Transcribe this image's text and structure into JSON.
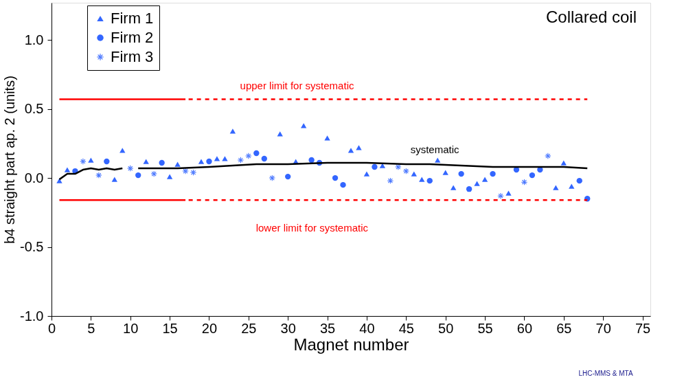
{
  "chart_data": {
    "type": "scatter",
    "title": "Collared coil",
    "xlabel": "Magnet number",
    "ylabel": "b4 straight part ap. 2 (units)",
    "xlim": [
      0,
      76
    ],
    "xticks": [
      0,
      5,
      10,
      15,
      20,
      25,
      30,
      35,
      40,
      45,
      50,
      55,
      60,
      65,
      70,
      75
    ],
    "ylim": [
      -1.0,
      1.27
    ],
    "yticks": [
      {
        "value": -1.0,
        "label": "-1.0"
      },
      {
        "value": -0.5,
        "label": "-0.5"
      },
      {
        "value": 0,
        "label": "0.0"
      },
      {
        "value": 0.5,
        "label": "0.5"
      },
      {
        "value": 1.0,
        "label": "1.0"
      }
    ],
    "grid": false,
    "legend": "top left",
    "series": [
      {
        "name": "Firm 1",
        "marker": "triangle",
        "color": "#3366ff",
        "x": [
          1,
          2,
          5,
          8,
          9,
          12,
          15,
          16,
          19,
          21,
          22,
          23,
          29,
          31,
          32,
          35,
          38,
          39,
          40,
          42,
          46,
          47,
          49,
          50,
          51,
          54,
          55,
          58,
          64,
          65,
          66
        ],
        "values": [
          -0.02,
          0.06,
          0.13,
          -0.01,
          0.2,
          0.12,
          0.01,
          0.1,
          0.12,
          0.14,
          0.14,
          0.34,
          0.32,
          0.12,
          0.38,
          0.29,
          0.2,
          0.22,
          0.03,
          0.09,
          0.03,
          -0.01,
          0.13,
          0.04,
          -0.07,
          -0.04,
          -0.01,
          -0.11,
          -0.07,
          0.11,
          -0.06
        ]
      },
      {
        "name": "Firm 2",
        "marker": "circle",
        "color": "#3366ff",
        "x": [
          3,
          7,
          11,
          14,
          20,
          26,
          27,
          30,
          33,
          34,
          36,
          37,
          41,
          48,
          52,
          53,
          56,
          59,
          61,
          62,
          67,
          68
        ],
        "values": [
          0.05,
          0.12,
          0.02,
          0.11,
          0.12,
          0.18,
          0.14,
          0.01,
          0.13,
          0.11,
          0.0,
          -0.05,
          0.08,
          -0.02,
          0.03,
          -0.08,
          0.03,
          0.06,
          0.02,
          0.06,
          -0.02,
          -0.15
        ]
      },
      {
        "name": "Firm 3",
        "marker": "cross",
        "color": "#3366ff",
        "x": [
          4,
          6,
          10,
          13,
          17,
          18,
          24,
          25,
          28,
          43,
          44,
          45,
          57,
          60,
          63
        ],
        "values": [
          0.12,
          0.02,
          0.07,
          0.03,
          0.05,
          0.04,
          0.13,
          0.16,
          0.0,
          -0.02,
          0.08,
          0.05,
          -0.13,
          -0.03,
          0.16
        ]
      },
      {
        "type": "line",
        "color": "#000000",
        "line_style": "solid",
        "x": [
          1,
          2,
          3,
          4,
          5,
          6,
          7,
          8,
          9,
          10,
          11,
          16,
          20,
          23,
          26,
          30,
          35,
          40,
          45,
          48,
          52,
          56,
          60,
          65,
          68
        ],
        "values": [
          -0.01,
          0.03,
          0.03,
          0.06,
          0.07,
          0.06,
          0.07,
          0.06,
          0.07,
          null,
          0.07,
          0.07,
          0.08,
          0.09,
          0.1,
          0.1,
          0.11,
          0.11,
          0.1,
          0.1,
          0.09,
          0.08,
          0.08,
          0.08,
          0.07
        ]
      },
      {
        "type": "line",
        "color": "#ff0000",
        "line_style": "solid",
        "x": [
          1,
          17
        ],
        "values": [
          0.57,
          0.57
        ]
      },
      {
        "type": "line",
        "color": "#ff0000",
        "line_style": "dotted",
        "x": [
          17.4,
          68
        ],
        "values": [
          0.57,
          0.57
        ]
      },
      {
        "type": "line",
        "color": "#ff0000",
        "line_style": "solid",
        "x": [
          1,
          17
        ],
        "values": [
          -0.16,
          -0.16
        ]
      },
      {
        "type": "line",
        "color": "#ff0000",
        "line_style": "dotted",
        "x": [
          17.4,
          68
        ],
        "values": [
          -0.16,
          -0.16
        ]
      }
    ],
    "annotations": [
      "upper limit for systematic",
      "lower limit for systematic",
      "systematic",
      "LHC-MMS & MTA"
    ]
  }
}
